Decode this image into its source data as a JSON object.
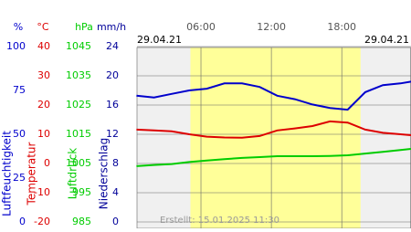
{
  "chart_data": {
    "type": "line",
    "dates": [
      "29.04.21",
      "29.04.21"
    ],
    "footer": "Erstellt: 15.01.2025 11:30",
    "x": [
      0.5,
      2,
      3.5,
      5,
      6.5,
      8,
      9.5,
      11,
      12.5,
      14,
      15.5,
      17,
      18.5,
      20,
      21.5,
      23,
      23.9
    ],
    "xlim": [
      0.55,
      23.9
    ],
    "xticks": [
      {
        "value": 6,
        "label": "06:00"
      },
      {
        "value": 12,
        "label": "12:00"
      },
      {
        "value": 18,
        "label": "18:00"
      }
    ],
    "daylight": [
      5.1,
      19.6
    ],
    "grid": true,
    "axes": [
      {
        "unit": "%",
        "label": "Luftfeuchtigkeit",
        "color": "#0000cc",
        "lim": [
          0,
          100
        ],
        "ticks": [
          0,
          25,
          50,
          75,
          100
        ]
      },
      {
        "unit": "°C",
        "label": "Temperatur",
        "color": "#dd0000",
        "lim": [
          -20,
          40
        ],
        "ticks": [
          -20,
          -10,
          0,
          10,
          20,
          30,
          40
        ]
      },
      {
        "unit": "hPa",
        "label": "Luftdruck",
        "color": "#00cc00",
        "lim": [
          985,
          1045
        ],
        "ticks": [
          985,
          995,
          1005,
          1015,
          1025,
          1035,
          1045
        ]
      },
      {
        "unit": "mm/h",
        "label": "Niederschlag",
        "color": "#000099",
        "lim": [
          0,
          24
        ],
        "ticks": [
          0,
          4,
          8,
          12,
          16,
          20,
          24
        ]
      }
    ],
    "series": [
      {
        "color": "#0000cc",
        "axis": 0,
        "values": [
          72,
          71,
          73,
          75,
          76,
          79,
          79,
          77,
          72,
          70,
          67,
          65,
          64,
          74,
          78,
          79,
          80
        ]
      },
      {
        "color": "#dd0000",
        "axis": 1,
        "values": [
          11.6,
          11.3,
          11,
          10,
          9.2,
          8.9,
          8.8,
          9.4,
          11.3,
          12,
          12.8,
          14.4,
          14,
          11.6,
          10.5,
          10,
          9.7
        ]
      },
      {
        "color": "#00cc00",
        "axis": 2,
        "values": [
          1004.1,
          1004.5,
          1004.8,
          1005.5,
          1006,
          1006.5,
          1006.9,
          1007.2,
          1007.5,
          1007.5,
          1007.5,
          1007.6,
          1007.8,
          1008.4,
          1009,
          1009.6,
          1010
        ]
      }
    ]
  }
}
